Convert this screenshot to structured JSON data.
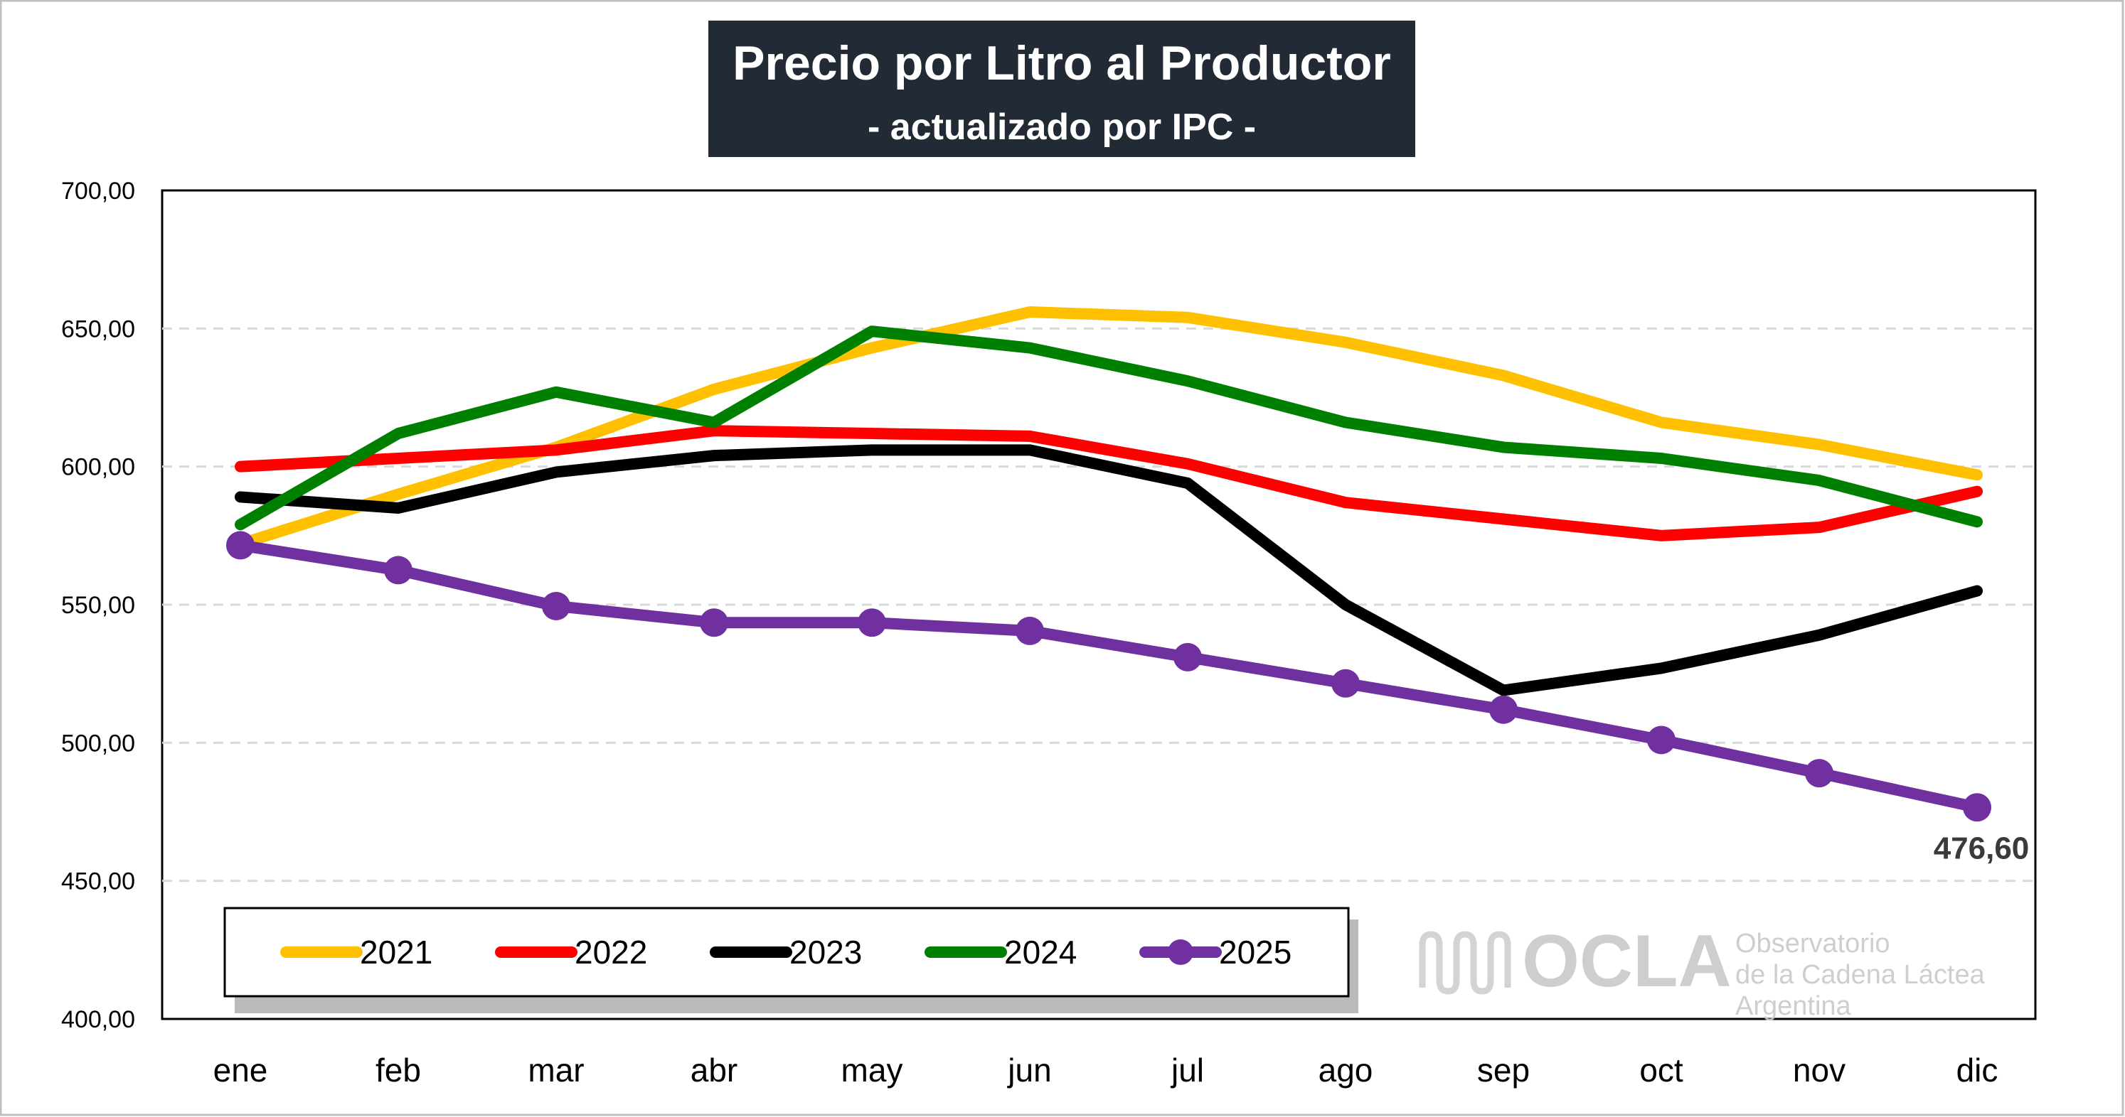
{
  "chart_data": {
    "type": "line",
    "title": "Precio por Litro al Productor",
    "subtitle": "- actualizado por IPC -",
    "categories": [
      "ene",
      "feb",
      "mar",
      "abr",
      "may",
      "jun",
      "jul",
      "ago",
      "sep",
      "oct",
      "nov",
      "dic"
    ],
    "ylim": [
      400,
      700
    ],
    "yticks": [
      "400,00",
      "450,00",
      "500,00",
      "550,00",
      "600,00",
      "650,00",
      "700,00"
    ],
    "grid": true,
    "legend": "bottom-left",
    "series": [
      {
        "name": "2021",
        "color": "#FFC000",
        "markers": false,
        "values": [
          572,
          590,
          607,
          628,
          643,
          656,
          654,
          645,
          633,
          616,
          608,
          597
        ]
      },
      {
        "name": "2022",
        "color": "#FF0000",
        "markers": false,
        "values": [
          600,
          603,
          606,
          613,
          612,
          611,
          601,
          587,
          581,
          575,
          578,
          591
        ]
      },
      {
        "name": "2023",
        "color": "#000000",
        "markers": false,
        "values": [
          589,
          585,
          598,
          604,
          606,
          606,
          594,
          550,
          519,
          527,
          539,
          555
        ]
      },
      {
        "name": "2024",
        "color": "#008000",
        "markers": false,
        "values": [
          579,
          612,
          627,
          616,
          649,
          643,
          631,
          616,
          607,
          603,
          595,
          580
        ]
      },
      {
        "name": "2025",
        "color": "#7030A0",
        "markers": true,
        "values": [
          571.5,
          562.5,
          549.5,
          543.5,
          543.5,
          540.5,
          531,
          521.5,
          512,
          501,
          489,
          476.6
        ]
      }
    ],
    "annotation": {
      "series": "2025",
      "index": 11,
      "text": "476,60"
    }
  },
  "watermark": {
    "brand": "OCLA",
    "line1": "Observatorio",
    "line2": "de la Cadena Láctea",
    "line3": "Argentina"
  }
}
